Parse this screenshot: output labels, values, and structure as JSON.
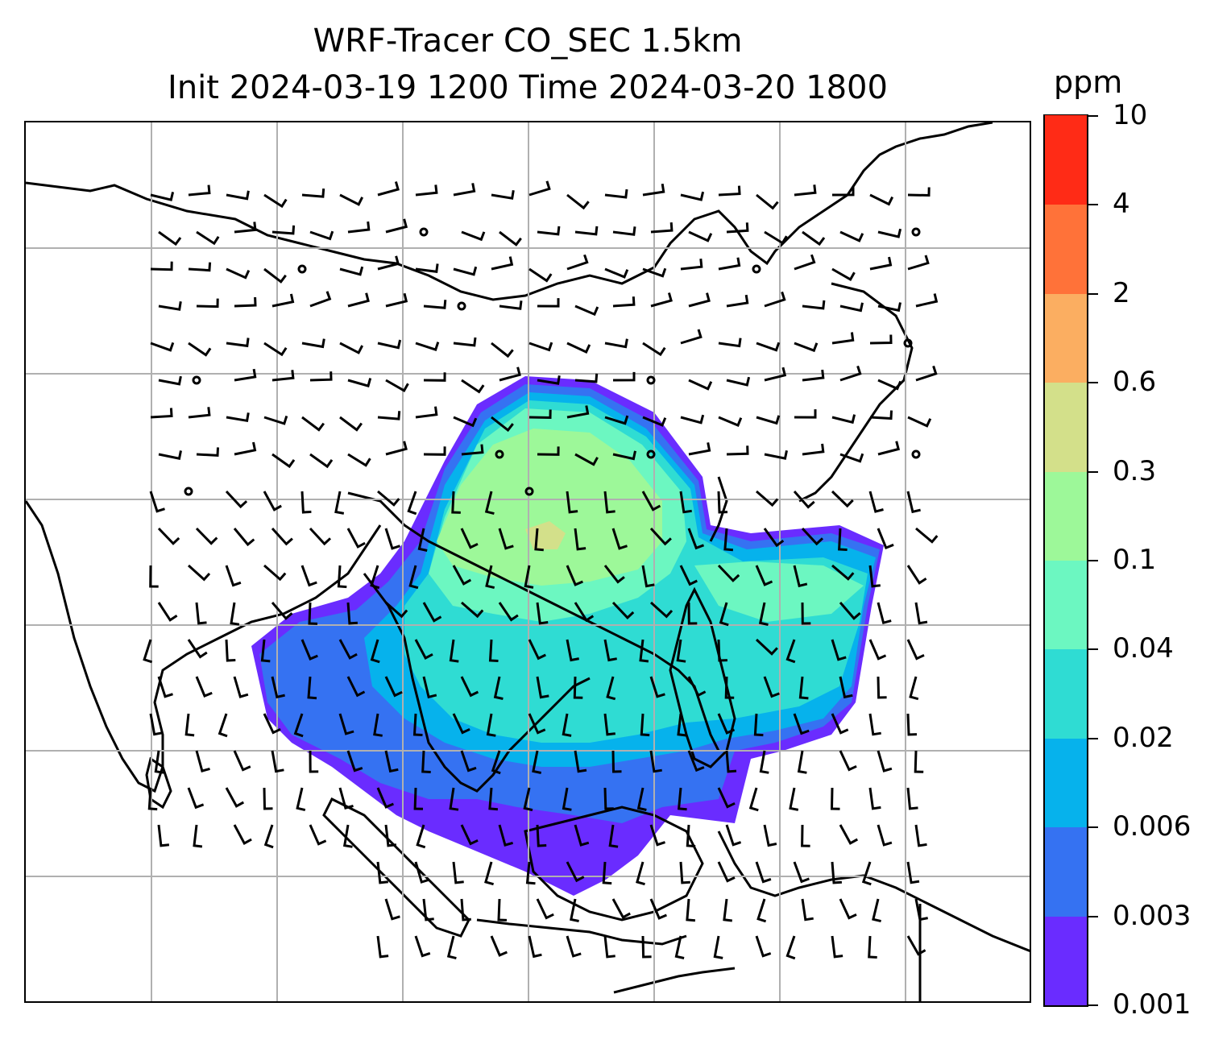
{
  "figure": {
    "title_line1": "WRF-Tracer CO_SEC 1.5km",
    "title_line2": "Init 2024-03-19 1200 Time 2024-03-20 1800"
  },
  "colorbar": {
    "units": "ppm",
    "levels": [
      "0.001",
      "0.003",
      "0.006",
      "0.02",
      "0.04",
      "0.1",
      "0.3",
      "0.6",
      "2",
      "4",
      "10"
    ],
    "colors": [
      "#6a2cff",
      "#3572f2",
      "#06b2ec",
      "#2fdcd3",
      "#6cf7c1",
      "#9df899",
      "#d3e08a",
      "#fbae61",
      "#ff7239",
      "#ff2b16"
    ]
  },
  "map": {
    "field": "CO_SEC tracer concentration with wind barbs",
    "coastline_color": "#000000",
    "gridline_color": "#b0b0b0"
  }
}
